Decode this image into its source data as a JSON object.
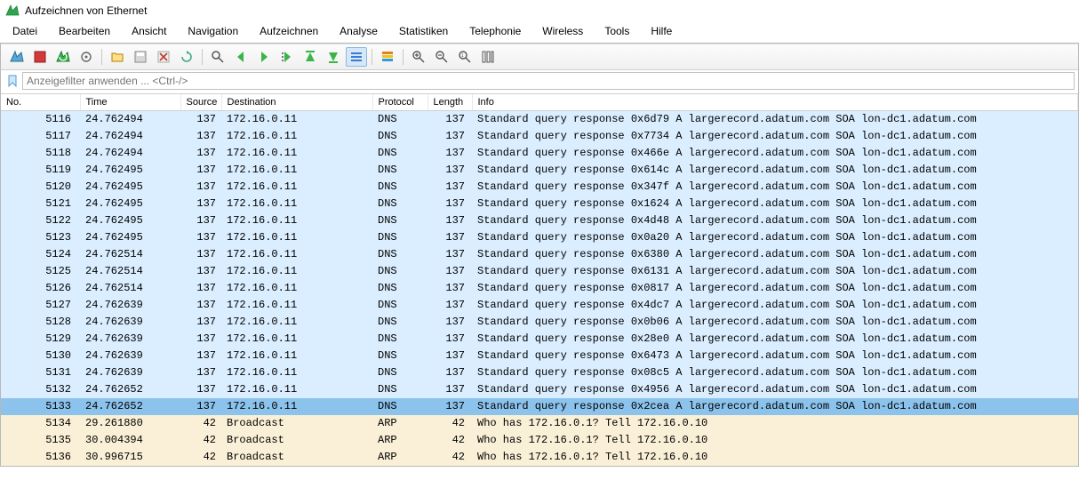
{
  "window": {
    "title": "Aufzeichnen von Ethernet"
  },
  "menu": {
    "items": [
      "Datei",
      "Bearbeiten",
      "Ansicht",
      "Navigation",
      "Aufzeichnen",
      "Analyse",
      "Statistiken",
      "Telephonie",
      "Wireless",
      "Tools",
      "Hilfe"
    ]
  },
  "filter": {
    "placeholder": "Anzeigefilter anwenden ... <Ctrl-/>"
  },
  "columns": {
    "no": "No.",
    "time": "Time",
    "source": "Source",
    "destination": "Destination",
    "protocol": "Protocol",
    "length": "Length",
    "info": "Info"
  },
  "colors": {
    "dns_row": "#daeeff",
    "dns_selected": "#8cc3ed",
    "arp_row": "#faf0d7",
    "header_bg": "#ffffff",
    "toolbar_bg": "#f4f4f4"
  },
  "packets": [
    {
      "no": "5116",
      "time": "24.762494",
      "source": "137",
      "destination": "172.16.0.11",
      "protocol": "DNS",
      "length": "137",
      "info": "Standard query response 0x6d79 A largerecord.adatum.com SOA lon-dc1.adatum.com",
      "type": "dns"
    },
    {
      "no": "5117",
      "time": "24.762494",
      "source": "137",
      "destination": "172.16.0.11",
      "protocol": "DNS",
      "length": "137",
      "info": "Standard query response 0x7734 A largerecord.adatum.com SOA lon-dc1.adatum.com",
      "type": "dns"
    },
    {
      "no": "5118",
      "time": "24.762494",
      "source": "137",
      "destination": "172.16.0.11",
      "protocol": "DNS",
      "length": "137",
      "info": "Standard query response 0x466e A largerecord.adatum.com SOA lon-dc1.adatum.com",
      "type": "dns"
    },
    {
      "no": "5119",
      "time": "24.762495",
      "source": "137",
      "destination": "172.16.0.11",
      "protocol": "DNS",
      "length": "137",
      "info": "Standard query response 0x614c A largerecord.adatum.com SOA lon-dc1.adatum.com",
      "type": "dns"
    },
    {
      "no": "5120",
      "time": "24.762495",
      "source": "137",
      "destination": "172.16.0.11",
      "protocol": "DNS",
      "length": "137",
      "info": "Standard query response 0x347f A largerecord.adatum.com SOA lon-dc1.adatum.com",
      "type": "dns"
    },
    {
      "no": "5121",
      "time": "24.762495",
      "source": "137",
      "destination": "172.16.0.11",
      "protocol": "DNS",
      "length": "137",
      "info": "Standard query response 0x1624 A largerecord.adatum.com SOA lon-dc1.adatum.com",
      "type": "dns"
    },
    {
      "no": "5122",
      "time": "24.762495",
      "source": "137",
      "destination": "172.16.0.11",
      "protocol": "DNS",
      "length": "137",
      "info": "Standard query response 0x4d48 A largerecord.adatum.com SOA lon-dc1.adatum.com",
      "type": "dns"
    },
    {
      "no": "5123",
      "time": "24.762495",
      "source": "137",
      "destination": "172.16.0.11",
      "protocol": "DNS",
      "length": "137",
      "info": "Standard query response 0x0a20 A largerecord.adatum.com SOA lon-dc1.adatum.com",
      "type": "dns"
    },
    {
      "no": "5124",
      "time": "24.762514",
      "source": "137",
      "destination": "172.16.0.11",
      "protocol": "DNS",
      "length": "137",
      "info": "Standard query response 0x6380 A largerecord.adatum.com SOA lon-dc1.adatum.com",
      "type": "dns"
    },
    {
      "no": "5125",
      "time": "24.762514",
      "source": "137",
      "destination": "172.16.0.11",
      "protocol": "DNS",
      "length": "137",
      "info": "Standard query response 0x6131 A largerecord.adatum.com SOA lon-dc1.adatum.com",
      "type": "dns"
    },
    {
      "no": "5126",
      "time": "24.762514",
      "source": "137",
      "destination": "172.16.0.11",
      "protocol": "DNS",
      "length": "137",
      "info": "Standard query response 0x0817 A largerecord.adatum.com SOA lon-dc1.adatum.com",
      "type": "dns"
    },
    {
      "no": "5127",
      "time": "24.762639",
      "source": "137",
      "destination": "172.16.0.11",
      "protocol": "DNS",
      "length": "137",
      "info": "Standard query response 0x4dc7 A largerecord.adatum.com SOA lon-dc1.adatum.com",
      "type": "dns"
    },
    {
      "no": "5128",
      "time": "24.762639",
      "source": "137",
      "destination": "172.16.0.11",
      "protocol": "DNS",
      "length": "137",
      "info": "Standard query response 0x0b06 A largerecord.adatum.com SOA lon-dc1.adatum.com",
      "type": "dns"
    },
    {
      "no": "5129",
      "time": "24.762639",
      "source": "137",
      "destination": "172.16.0.11",
      "protocol": "DNS",
      "length": "137",
      "info": "Standard query response 0x28e0 A largerecord.adatum.com SOA lon-dc1.adatum.com",
      "type": "dns"
    },
    {
      "no": "5130",
      "time": "24.762639",
      "source": "137",
      "destination": "172.16.0.11",
      "protocol": "DNS",
      "length": "137",
      "info": "Standard query response 0x6473 A largerecord.adatum.com SOA lon-dc1.adatum.com",
      "type": "dns"
    },
    {
      "no": "5131",
      "time": "24.762639",
      "source": "137",
      "destination": "172.16.0.11",
      "protocol": "DNS",
      "length": "137",
      "info": "Standard query response 0x08c5 A largerecord.adatum.com SOA lon-dc1.adatum.com",
      "type": "dns"
    },
    {
      "no": "5132",
      "time": "24.762652",
      "source": "137",
      "destination": "172.16.0.11",
      "protocol": "DNS",
      "length": "137",
      "info": "Standard query response 0x4956 A largerecord.adatum.com SOA lon-dc1.adatum.com",
      "type": "dns"
    },
    {
      "no": "5133",
      "time": "24.762652",
      "source": "137",
      "destination": "172.16.0.11",
      "protocol": "DNS",
      "length": "137",
      "info": "Standard query response 0x2cea A largerecord.adatum.com SOA lon-dc1.adatum.com",
      "type": "dns",
      "selected": true
    },
    {
      "no": "5134",
      "time": "29.261880",
      "source": "42",
      "destination": "Broadcast",
      "protocol": "ARP",
      "length": "42",
      "info": "Who has 172.16.0.1? Tell 172.16.0.10",
      "type": "arp"
    },
    {
      "no": "5135",
      "time": "30.004394",
      "source": "42",
      "destination": "Broadcast",
      "protocol": "ARP",
      "length": "42",
      "info": "Who has 172.16.0.1? Tell 172.16.0.10",
      "type": "arp"
    },
    {
      "no": "5136",
      "time": "30.996715",
      "source": "42",
      "destination": "Broadcast",
      "protocol": "ARP",
      "length": "42",
      "info": "Who has 172.16.0.1? Tell 172.16.0.10",
      "type": "arp"
    }
  ]
}
